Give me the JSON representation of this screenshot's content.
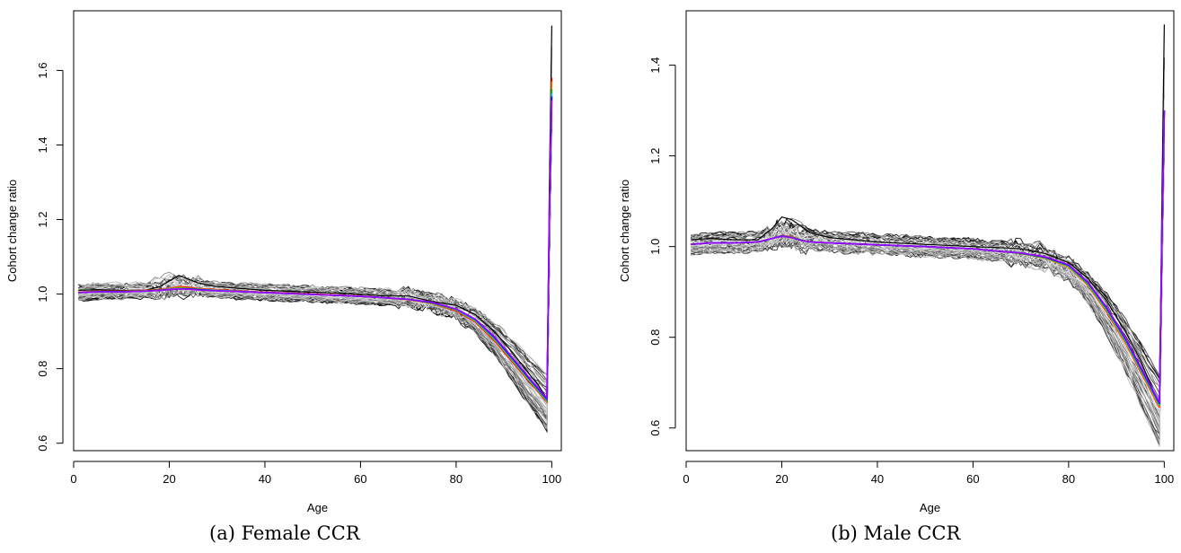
{
  "figure": {
    "captions": [
      "(a) Female CCR",
      "(b) Male CCR"
    ]
  },
  "chart_data": [
    {
      "type": "line",
      "title": "",
      "caption": "(a) Female CCR",
      "xlabel": "Age",
      "ylabel": "Cohort change ratio",
      "xlim": [
        0,
        102
      ],
      "ylim": [
        0.58,
        1.76
      ],
      "xticks": [
        0,
        20,
        40,
        60,
        80,
        100
      ],
      "yticks": [
        0.6,
        0.8,
        1.0,
        1.2,
        1.4,
        1.6
      ],
      "ytick_labels": [
        "0.6",
        "0.8",
        "1.0",
        "1.2",
        "1.4",
        "1.6"
      ],
      "grid": false,
      "legend": "none",
      "background_curves": {
        "count": 40,
        "color_range": [
          "#000000",
          "#e6e6e6"
        ],
        "x": [
          1,
          5,
          10,
          15,
          18,
          20,
          22,
          24,
          26,
          30,
          40,
          50,
          60,
          65,
          70,
          75,
          80,
          84,
          88,
          92,
          95,
          97,
          99,
          99.5,
          100
        ],
        "center": [
          1.005,
          1.008,
          1.008,
          1.01,
          1.015,
          1.02,
          1.022,
          1.02,
          1.018,
          1.012,
          1.005,
          1.0,
          0.995,
          0.993,
          0.99,
          0.98,
          0.96,
          0.93,
          0.88,
          0.82,
          0.77,
          0.74,
          0.71,
          1.2,
          1.55
        ],
        "spread_y_young": 0.025,
        "spread_y_old": 0.08
      },
      "series": [
        {
          "color": "#000000",
          "x": [
            1,
            5,
            10,
            15,
            18,
            20,
            22,
            24,
            26,
            30,
            40,
            50,
            60,
            65,
            70,
            75,
            80,
            84,
            88,
            92,
            95,
            97,
            99,
            99.5,
            100
          ],
          "y": [
            1.01,
            1.012,
            1.01,
            1.01,
            1.02,
            1.035,
            1.05,
            1.04,
            1.03,
            1.02,
            1.01,
            1.005,
            1.0,
            0.995,
            0.995,
            0.98,
            0.97,
            0.945,
            0.9,
            0.84,
            0.79,
            0.76,
            0.72,
            1.3,
            1.72
          ]
        },
        {
          "color": "#ff0000",
          "x": [
            1,
            5,
            10,
            15,
            18,
            20,
            22,
            24,
            26,
            30,
            40,
            50,
            60,
            65,
            70,
            75,
            80,
            84,
            88,
            92,
            95,
            97,
            99,
            99.5,
            100
          ],
          "y": [
            1.005,
            1.008,
            1.008,
            1.01,
            1.012,
            1.015,
            1.02,
            1.018,
            1.015,
            1.012,
            1.005,
            1.0,
            0.995,
            0.99,
            0.985,
            0.975,
            0.955,
            0.925,
            0.875,
            0.815,
            0.77,
            0.74,
            0.71,
            1.2,
            1.58
          ]
        },
        {
          "color": "#ff8c00",
          "x": [
            1,
            5,
            10,
            15,
            18,
            20,
            22,
            24,
            26,
            30,
            40,
            50,
            60,
            65,
            70,
            75,
            80,
            84,
            88,
            92,
            95,
            97,
            99,
            99.5,
            100
          ],
          "y": [
            1.005,
            1.007,
            1.007,
            1.009,
            1.011,
            1.014,
            1.018,
            1.016,
            1.014,
            1.011,
            1.004,
            0.999,
            0.994,
            0.99,
            0.985,
            0.975,
            0.957,
            0.927,
            0.878,
            0.818,
            0.772,
            0.742,
            0.712,
            1.2,
            1.57
          ]
        },
        {
          "color": "#00c000",
          "x": [
            1,
            5,
            10,
            15,
            18,
            20,
            22,
            24,
            26,
            30,
            40,
            50,
            60,
            65,
            70,
            75,
            80,
            84,
            88,
            92,
            95,
            97,
            99,
            99.5,
            100
          ],
          "y": [
            1.004,
            1.007,
            1.007,
            1.009,
            1.011,
            1.013,
            1.016,
            1.015,
            1.013,
            1.01,
            1.004,
            0.999,
            0.994,
            0.99,
            0.986,
            0.976,
            0.958,
            0.929,
            0.88,
            0.82,
            0.774,
            0.744,
            0.714,
            1.2,
            1.55
          ]
        },
        {
          "color": "#00c8ff",
          "x": [
            1,
            5,
            10,
            15,
            18,
            20,
            22,
            24,
            26,
            30,
            40,
            50,
            60,
            65,
            70,
            75,
            80,
            84,
            88,
            92,
            95,
            97,
            99,
            99.5,
            100
          ],
          "y": [
            1.004,
            1.006,
            1.006,
            1.008,
            1.01,
            1.013,
            1.015,
            1.014,
            1.012,
            1.01,
            1.004,
            0.999,
            0.994,
            0.99,
            0.986,
            0.977,
            0.959,
            0.93,
            0.882,
            0.822,
            0.776,
            0.746,
            0.716,
            1.2,
            1.54
          ]
        },
        {
          "color": "#0000ff",
          "x": [
            1,
            5,
            10,
            15,
            18,
            20,
            22,
            24,
            26,
            30,
            40,
            50,
            60,
            65,
            70,
            75,
            80,
            84,
            88,
            92,
            95,
            97,
            99,
            99.5,
            100
          ],
          "y": [
            1.004,
            1.006,
            1.006,
            1.008,
            1.01,
            1.012,
            1.014,
            1.014,
            1.012,
            1.009,
            1.004,
            0.999,
            0.994,
            0.99,
            0.986,
            0.977,
            0.96,
            0.932,
            0.884,
            0.824,
            0.778,
            0.748,
            0.718,
            1.2,
            1.53
          ]
        },
        {
          "color": "#a000ff",
          "x": [
            1,
            5,
            10,
            15,
            18,
            20,
            22,
            24,
            26,
            30,
            40,
            50,
            60,
            65,
            70,
            75,
            80,
            84,
            88,
            92,
            95,
            97,
            99,
            99.5,
            100
          ],
          "y": [
            1.004,
            1.006,
            1.006,
            1.008,
            1.01,
            1.012,
            1.014,
            1.013,
            1.011,
            1.009,
            1.004,
            0.999,
            0.994,
            0.99,
            0.986,
            0.978,
            0.96,
            0.933,
            0.886,
            0.826,
            0.78,
            0.75,
            0.72,
            1.2,
            1.52
          ]
        }
      ]
    },
    {
      "type": "line",
      "title": "",
      "caption": "(b) Male CCR",
      "xlabel": "Age",
      "ylabel": "Cohort change ratio",
      "xlim": [
        0,
        102
      ],
      "ylim": [
        0.55,
        1.52
      ],
      "xticks": [
        0,
        20,
        40,
        60,
        80,
        100
      ],
      "yticks": [
        0.6,
        0.8,
        1.0,
        1.2,
        1.4
      ],
      "ytick_labels": [
        "0.6",
        "0.8",
        "1.0",
        "1.2",
        "1.4"
      ],
      "grid": false,
      "legend": "none",
      "background_curves": {
        "count": 40,
        "color_range": [
          "#000000",
          "#e6e6e6"
        ],
        "x": [
          1,
          5,
          10,
          15,
          18,
          20,
          22,
          24,
          26,
          30,
          40,
          50,
          60,
          65,
          70,
          75,
          80,
          84,
          88,
          92,
          95,
          97,
          99,
          99.5,
          100
        ],
        "center": [
          1.005,
          1.008,
          1.008,
          1.01,
          1.02,
          1.03,
          1.025,
          1.02,
          1.015,
          1.01,
          1.005,
          1.0,
          0.995,
          0.99,
          0.985,
          0.975,
          0.95,
          0.91,
          0.85,
          0.78,
          0.72,
          0.68,
          0.64,
          1.0,
          1.3
        ],
        "spread_y_young": 0.025,
        "spread_y_old": 0.08
      },
      "series": [
        {
          "color": "#000000",
          "x": [
            1,
            5,
            10,
            15,
            18,
            20,
            22,
            24,
            26,
            30,
            40,
            50,
            60,
            65,
            70,
            75,
            80,
            84,
            88,
            92,
            95,
            97,
            99,
            99.5,
            100
          ],
          "y": [
            1.015,
            1.018,
            1.015,
            1.015,
            1.04,
            1.065,
            1.06,
            1.045,
            1.03,
            1.02,
            1.01,
            1.005,
            1.0,
            0.998,
            0.995,
            0.985,
            0.965,
            0.93,
            0.88,
            0.81,
            0.75,
            0.7,
            0.65,
            1.1,
            1.49
          ]
        },
        {
          "color": "#ff0000",
          "x": [
            1,
            5,
            10,
            15,
            18,
            20,
            22,
            24,
            26,
            30,
            40,
            50,
            60,
            65,
            70,
            75,
            80,
            84,
            88,
            92,
            95,
            97,
            99,
            99.5,
            100
          ],
          "y": [
            1.005,
            1.008,
            1.008,
            1.01,
            1.018,
            1.025,
            1.022,
            1.015,
            1.01,
            1.008,
            1.004,
            1.0,
            0.995,
            0.99,
            0.985,
            0.975,
            0.955,
            0.915,
            0.855,
            0.785,
            0.725,
            0.685,
            0.645,
            1.0,
            1.3
          ]
        },
        {
          "color": "#ff8c00",
          "x": [
            1,
            5,
            10,
            15,
            18,
            20,
            22,
            24,
            26,
            30,
            40,
            50,
            60,
            65,
            70,
            75,
            80,
            84,
            88,
            92,
            95,
            97,
            99,
            99.5,
            100
          ],
          "y": [
            1.005,
            1.008,
            1.008,
            1.01,
            1.018,
            1.024,
            1.021,
            1.015,
            1.01,
            1.008,
            1.004,
            1.0,
            0.995,
            0.99,
            0.985,
            0.975,
            0.955,
            0.916,
            0.857,
            0.787,
            0.727,
            0.687,
            0.647,
            1.0,
            1.3
          ]
        },
        {
          "color": "#00c000",
          "x": [
            1,
            5,
            10,
            15,
            18,
            20,
            22,
            24,
            26,
            30,
            40,
            50,
            60,
            65,
            70,
            75,
            80,
            84,
            88,
            92,
            95,
            97,
            99,
            99.5,
            100
          ],
          "y": [
            1.005,
            1.008,
            1.008,
            1.01,
            1.018,
            1.024,
            1.021,
            1.015,
            1.01,
            1.008,
            1.004,
            1.0,
            0.995,
            0.99,
            0.985,
            0.976,
            0.957,
            0.918,
            0.86,
            0.79,
            0.73,
            0.69,
            0.65,
            1.0,
            1.3
          ]
        },
        {
          "color": "#00c8ff",
          "x": [
            1,
            5,
            10,
            15,
            18,
            20,
            22,
            24,
            26,
            30,
            40,
            50,
            60,
            65,
            70,
            75,
            80,
            84,
            88,
            92,
            95,
            97,
            99,
            99.5,
            100
          ],
          "y": [
            1.005,
            1.008,
            1.008,
            1.01,
            1.018,
            1.024,
            1.02,
            1.014,
            1.01,
            1.008,
            1.004,
            1.0,
            0.995,
            0.99,
            0.986,
            0.977,
            0.958,
            0.92,
            0.862,
            0.792,
            0.732,
            0.692,
            0.652,
            1.0,
            1.3
          ]
        },
        {
          "color": "#0000ff",
          "x": [
            1,
            5,
            10,
            15,
            18,
            20,
            22,
            24,
            26,
            30,
            40,
            50,
            60,
            65,
            70,
            75,
            80,
            84,
            88,
            92,
            95,
            97,
            99,
            99.5,
            100
          ],
          "y": [
            1.005,
            1.008,
            1.008,
            1.01,
            1.018,
            1.023,
            1.02,
            1.014,
            1.01,
            1.008,
            1.004,
            1.0,
            0.995,
            0.99,
            0.986,
            0.977,
            0.959,
            0.921,
            0.864,
            0.794,
            0.734,
            0.694,
            0.654,
            1.0,
            1.3
          ]
        },
        {
          "color": "#a000ff",
          "x": [
            1,
            5,
            10,
            15,
            18,
            20,
            22,
            24,
            26,
            30,
            40,
            50,
            60,
            65,
            70,
            75,
            80,
            84,
            88,
            92,
            95,
            97,
            99,
            99.5,
            100
          ],
          "y": [
            1.005,
            1.008,
            1.008,
            1.01,
            1.018,
            1.023,
            1.02,
            1.014,
            1.01,
            1.008,
            1.004,
            1.0,
            0.995,
            0.99,
            0.986,
            0.978,
            0.96,
            0.922,
            0.866,
            0.796,
            0.736,
            0.696,
            0.656,
            1.0,
            1.3
          ]
        }
      ]
    }
  ]
}
